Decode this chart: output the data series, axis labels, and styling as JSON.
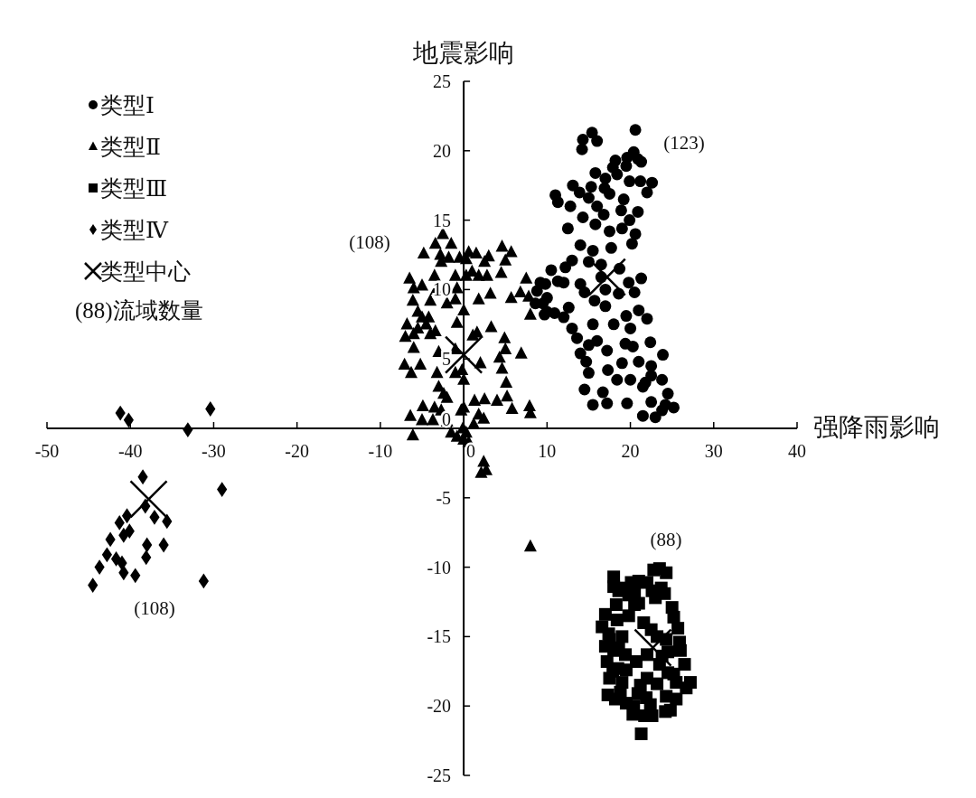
{
  "chart_data": {
    "type": "scatter",
    "xlabel": "强降雨影响",
    "ylabel": "地震影响",
    "xlim": [
      -50,
      40
    ],
    "xticks": [
      -50,
      -40,
      -30,
      -20,
      -10,
      0,
      10,
      20,
      30,
      40
    ],
    "ylim": [
      -25,
      25
    ],
    "yticks": [
      -25,
      -20,
      -15,
      -10,
      -5,
      0,
      5,
      10,
      15,
      20,
      25
    ],
    "grid": false,
    "legend": "top left",
    "series": [
      {
        "name": "类型Ⅰ",
        "color": "#000000",
        "marker": "circle",
        "x": [
          20.6,
          15.4,
          14.3,
          16.0,
          14.2,
          20.4,
          19.6,
          18.2,
          20.9,
          19.5,
          21.3,
          17.9,
          15.8,
          17.0,
          18.4,
          13.1,
          15.3,
          16.9,
          19.9,
          21.2,
          22.6,
          13.9,
          17.5,
          19.2,
          22.0,
          11.0,
          11.3,
          15.0,
          16.0,
          18.9,
          20.9,
          12.5,
          15.8,
          17.5,
          19.0,
          20.6,
          14.0,
          15.5,
          17.7,
          20.2,
          13.0,
          15.0,
          16.5,
          18.7,
          12.0,
          14.0,
          16.5,
          19.8,
          17.0,
          14.5,
          21.3,
          10.0,
          11.3,
          12.6,
          10.0,
          15.7,
          17.0,
          19.5,
          21.0,
          15.5,
          18.0,
          20.0,
          22.0,
          12.0,
          13.0,
          15.0,
          16.0,
          17.2,
          19.4,
          20.3,
          22.4,
          14.0,
          14.7,
          17.3,
          19.0,
          21.0,
          22.5,
          15.0,
          18.4,
          20.0,
          21.8,
          14.5,
          16.7,
          21.5,
          23.8,
          15.5,
          17.2,
          19.6,
          22.5,
          24.5,
          23.8,
          25.2,
          21.5,
          23.0,
          24.2,
          10.5,
          22.5,
          23.9,
          10.9,
          9.2,
          9.8,
          8.8,
          8.6,
          9.5,
          9.7,
          12.8,
          14.3,
          16.8,
          19.9,
          12.2,
          18.6,
          20.5,
          13.6
        ],
        "values": [
          21.5,
          21.3,
          20.8,
          20.7,
          20.1,
          19.9,
          19.5,
          19.3,
          19.4,
          18.9,
          19.2,
          18.8,
          18.4,
          18.0,
          18.3,
          17.5,
          17.4,
          17.3,
          17.8,
          17.8,
          17.7,
          17.0,
          16.9,
          16.5,
          17.0,
          16.8,
          16.3,
          16.6,
          16.0,
          15.7,
          15.6,
          14.4,
          14.7,
          14.2,
          14.4,
          14.0,
          13.2,
          12.8,
          13.0,
          13.3,
          12.1,
          12.0,
          11.8,
          11.5,
          10.5,
          10.4,
          10.9,
          10.5,
          10.0,
          9.8,
          10.8,
          9.4,
          10.6,
          8.7,
          8.4,
          9.2,
          8.8,
          8.1,
          8.5,
          7.5,
          7.5,
          7.2,
          7.9,
          8.0,
          7.2,
          6.0,
          6.3,
          5.6,
          6.1,
          5.9,
          6.2,
          5.4,
          4.8,
          4.2,
          4.7,
          4.8,
          4.5,
          4.0,
          3.5,
          3.5,
          3.3,
          2.8,
          2.6,
          3.0,
          3.5,
          1.7,
          1.8,
          1.8,
          1.9,
          2.5,
          1.3,
          1.5,
          0.9,
          0.8,
          1.7,
          11.4,
          3.8,
          5.3,
          8.3,
          10.5,
          10.4,
          9.9,
          9.0,
          9.0,
          8.2,
          16.0,
          15.2,
          15.4,
          15.0,
          11.6,
          9.7,
          9.8,
          6.5
        ]
      },
      {
        "name": "类型Ⅱ",
        "color": "#000000",
        "marker": "triangle",
        "x": [
          -2.5,
          -3.4,
          -1.5,
          -4.8,
          -2.8,
          -2.7,
          -1.8,
          0.6,
          1.5,
          2.5,
          3.0,
          4.6,
          5.7,
          5.0,
          0.3,
          1.0,
          1.8,
          0.3,
          -3.5,
          -1.0,
          2.8,
          4.5,
          -6.5,
          -5.0,
          -6.0,
          -3.3,
          -0.8,
          3.2,
          7.5,
          6.8,
          7.8,
          5.7,
          8.0,
          -6.1,
          -4.0,
          -2.0,
          -1.0,
          1.8,
          -5.5,
          -5.0,
          -4.2,
          -4.5,
          0.0,
          -6.8,
          -5.5,
          -4.0,
          -3.4,
          -0.8,
          1.1,
          1.6,
          3.3,
          -7.0,
          -6.0,
          -3.0,
          -1.0,
          4.9,
          5.0,
          6.9,
          -6.0,
          -7.1,
          -5.2,
          -6.3,
          -0.2,
          2.0,
          4.3,
          4.6,
          -3.2,
          -1.0,
          -3.0,
          0.0,
          5.1,
          -2.4,
          -2.0,
          1.3,
          2.5,
          4.0,
          5.2,
          -3.5,
          -4.9,
          -2.7,
          -0.3,
          0.0,
          5.8,
          7.9,
          8.0,
          -5.0,
          -3.7,
          -2.0,
          -0.1,
          1.2,
          2.4,
          0.3,
          -6.1,
          -6.4,
          -1.5,
          -0.8,
          0.0,
          1.8,
          0.6,
          2.4,
          2.7,
          2.1,
          8.0,
          -0.5
        ],
        "values": [
          14.0,
          13.3,
          13.3,
          12.6,
          12.5,
          12.0,
          12.3,
          12.7,
          12.6,
          12.0,
          12.4,
          13.1,
          12.7,
          12.1,
          12.2,
          11.3,
          11.0,
          11.0,
          11.0,
          11.0,
          11.0,
          11.2,
          10.8,
          10.3,
          10.1,
          10.0,
          10.1,
          9.7,
          10.8,
          9.8,
          9.5,
          9.4,
          8.2,
          9.2,
          9.2,
          9.0,
          9.3,
          9.3,
          8.4,
          8.0,
          8.0,
          7.5,
          8.5,
          7.5,
          7.2,
          6.8,
          7.0,
          7.6,
          6.7,
          6.9,
          7.3,
          6.6,
          6.8,
          5.5,
          5.7,
          6.5,
          5.7,
          5.4,
          5.8,
          4.6,
          4.6,
          4.0,
          4.2,
          4.7,
          5.1,
          4.3,
          4.0,
          4.0,
          3.0,
          3.5,
          3.3,
          2.5,
          2.2,
          2.0,
          2.1,
          2.0,
          2.3,
          1.5,
          1.6,
          1.3,
          1.3,
          1.5,
          1.4,
          1.6,
          1.1,
          0.6,
          0.6,
          0.5,
          0.0,
          0.3,
          0.7,
          -0.3,
          -0.5,
          0.9,
          -0.3,
          -0.6,
          -0.8,
          1.0,
          -1.0,
          -2.4,
          -3.0,
          -3.2,
          -8.5,
          12.3
        ]
      },
      {
        "name": "类型Ⅲ",
        "color": "#000000",
        "marker": "square",
        "x": [
          21.3,
          17.0,
          16.6,
          17.4,
          18.3,
          18.6,
          19.4,
          20.1,
          21.0,
          22.0,
          22.8,
          23.5,
          24.3,
          22.6,
          23.0,
          18.0,
          18.0,
          17.2,
          17.9,
          18.6,
          19.8,
          20.5,
          21.0,
          21.6,
          22.5,
          23.2,
          24.3,
          25.7,
          26.0,
          25.5,
          26.5,
          26.7,
          27.2,
          24.5,
          23.5,
          22.0,
          20.7,
          22.0,
          21.2,
          19.0,
          18.2,
          17.3,
          17.5,
          18.5,
          18.8,
          19.5,
          20.4,
          20.3,
          21.7,
          22.6,
          24.2,
          24.8,
          25.5,
          24.3,
          23.2,
          24.5,
          25.2,
          19.0,
          18.0,
          17.5,
          19.4,
          20.9,
          21.9,
          19.8,
          20.5,
          23.7,
          24.1,
          25.2,
          25.9,
          17.0,
          19.5,
          22.4,
          23.8,
          18.4,
          25.0
        ],
        "values": [
          -22.0,
          -13.4,
          -14.3,
          -14.8,
          -12.7,
          -11.7,
          -11.5,
          -11.1,
          -11.0,
          -11.1,
          -10.2,
          -10.1,
          -10.4,
          -11.7,
          -12.2,
          -10.7,
          -11.4,
          -16.8,
          -17.5,
          -15.8,
          -13.5,
          -12.7,
          -12.6,
          -14.0,
          -14.5,
          -15.0,
          -15.2,
          -14.4,
          -16.0,
          -18.3,
          -17.0,
          -18.7,
          -18.3,
          -16.1,
          -17.0,
          -16.3,
          -16.8,
          -18.0,
          -18.5,
          -18.3,
          -19.5,
          -19.2,
          -18.0,
          -17.3,
          -19.0,
          -19.8,
          -20.0,
          -20.6,
          -20.7,
          -20.7,
          -20.4,
          -20.3,
          -19.5,
          -19.3,
          -18.4,
          -17.6,
          -17.7,
          -15.0,
          -16.0,
          -15.2,
          -16.3,
          -19.1,
          -19.4,
          -12.0,
          -11.8,
          -11.5,
          -11.9,
          -13.6,
          -15.4,
          -15.7,
          -17.4,
          -19.9,
          -16.4,
          -13.8,
          -12.9
        ]
      },
      {
        "name": "类型Ⅳ",
        "color": "#000000",
        "marker": "diamond",
        "x": [
          -41.2,
          -40.2,
          -33.1,
          -30.4,
          -29.0,
          -38.5,
          -38.2,
          -40.4,
          -41.3,
          -40.1,
          -40.8,
          -37.1,
          -35.6,
          -42.4,
          -38.0,
          -36.0,
          -38.1,
          -42.8,
          -41.7,
          -41.0,
          -43.7,
          -40.8,
          -39.4,
          -44.5,
          -31.2
        ],
        "values": [
          1.1,
          0.6,
          -0.1,
          1.4,
          -4.4,
          -3.5,
          -5.6,
          -6.3,
          -6.8,
          -7.4,
          -7.7,
          -6.4,
          -6.7,
          -8.0,
          -8.4,
          -8.4,
          -9.3,
          -9.1,
          -9.4,
          -9.7,
          -10.0,
          -10.4,
          -10.6,
          -11.3,
          -11.0
        ]
      },
      {
        "name": "类型中心",
        "color": "#000000",
        "marker": "cross",
        "x": [
          17.2,
          0.0,
          22.7,
          -37.8
        ],
        "values": [
          10.9,
          5.3,
          -15.8,
          -5.1
        ]
      }
    ],
    "annotations": [
      "(123)",
      "(108)",
      "(88)",
      "(108)",
      "(88)流域数量"
    ]
  }
}
